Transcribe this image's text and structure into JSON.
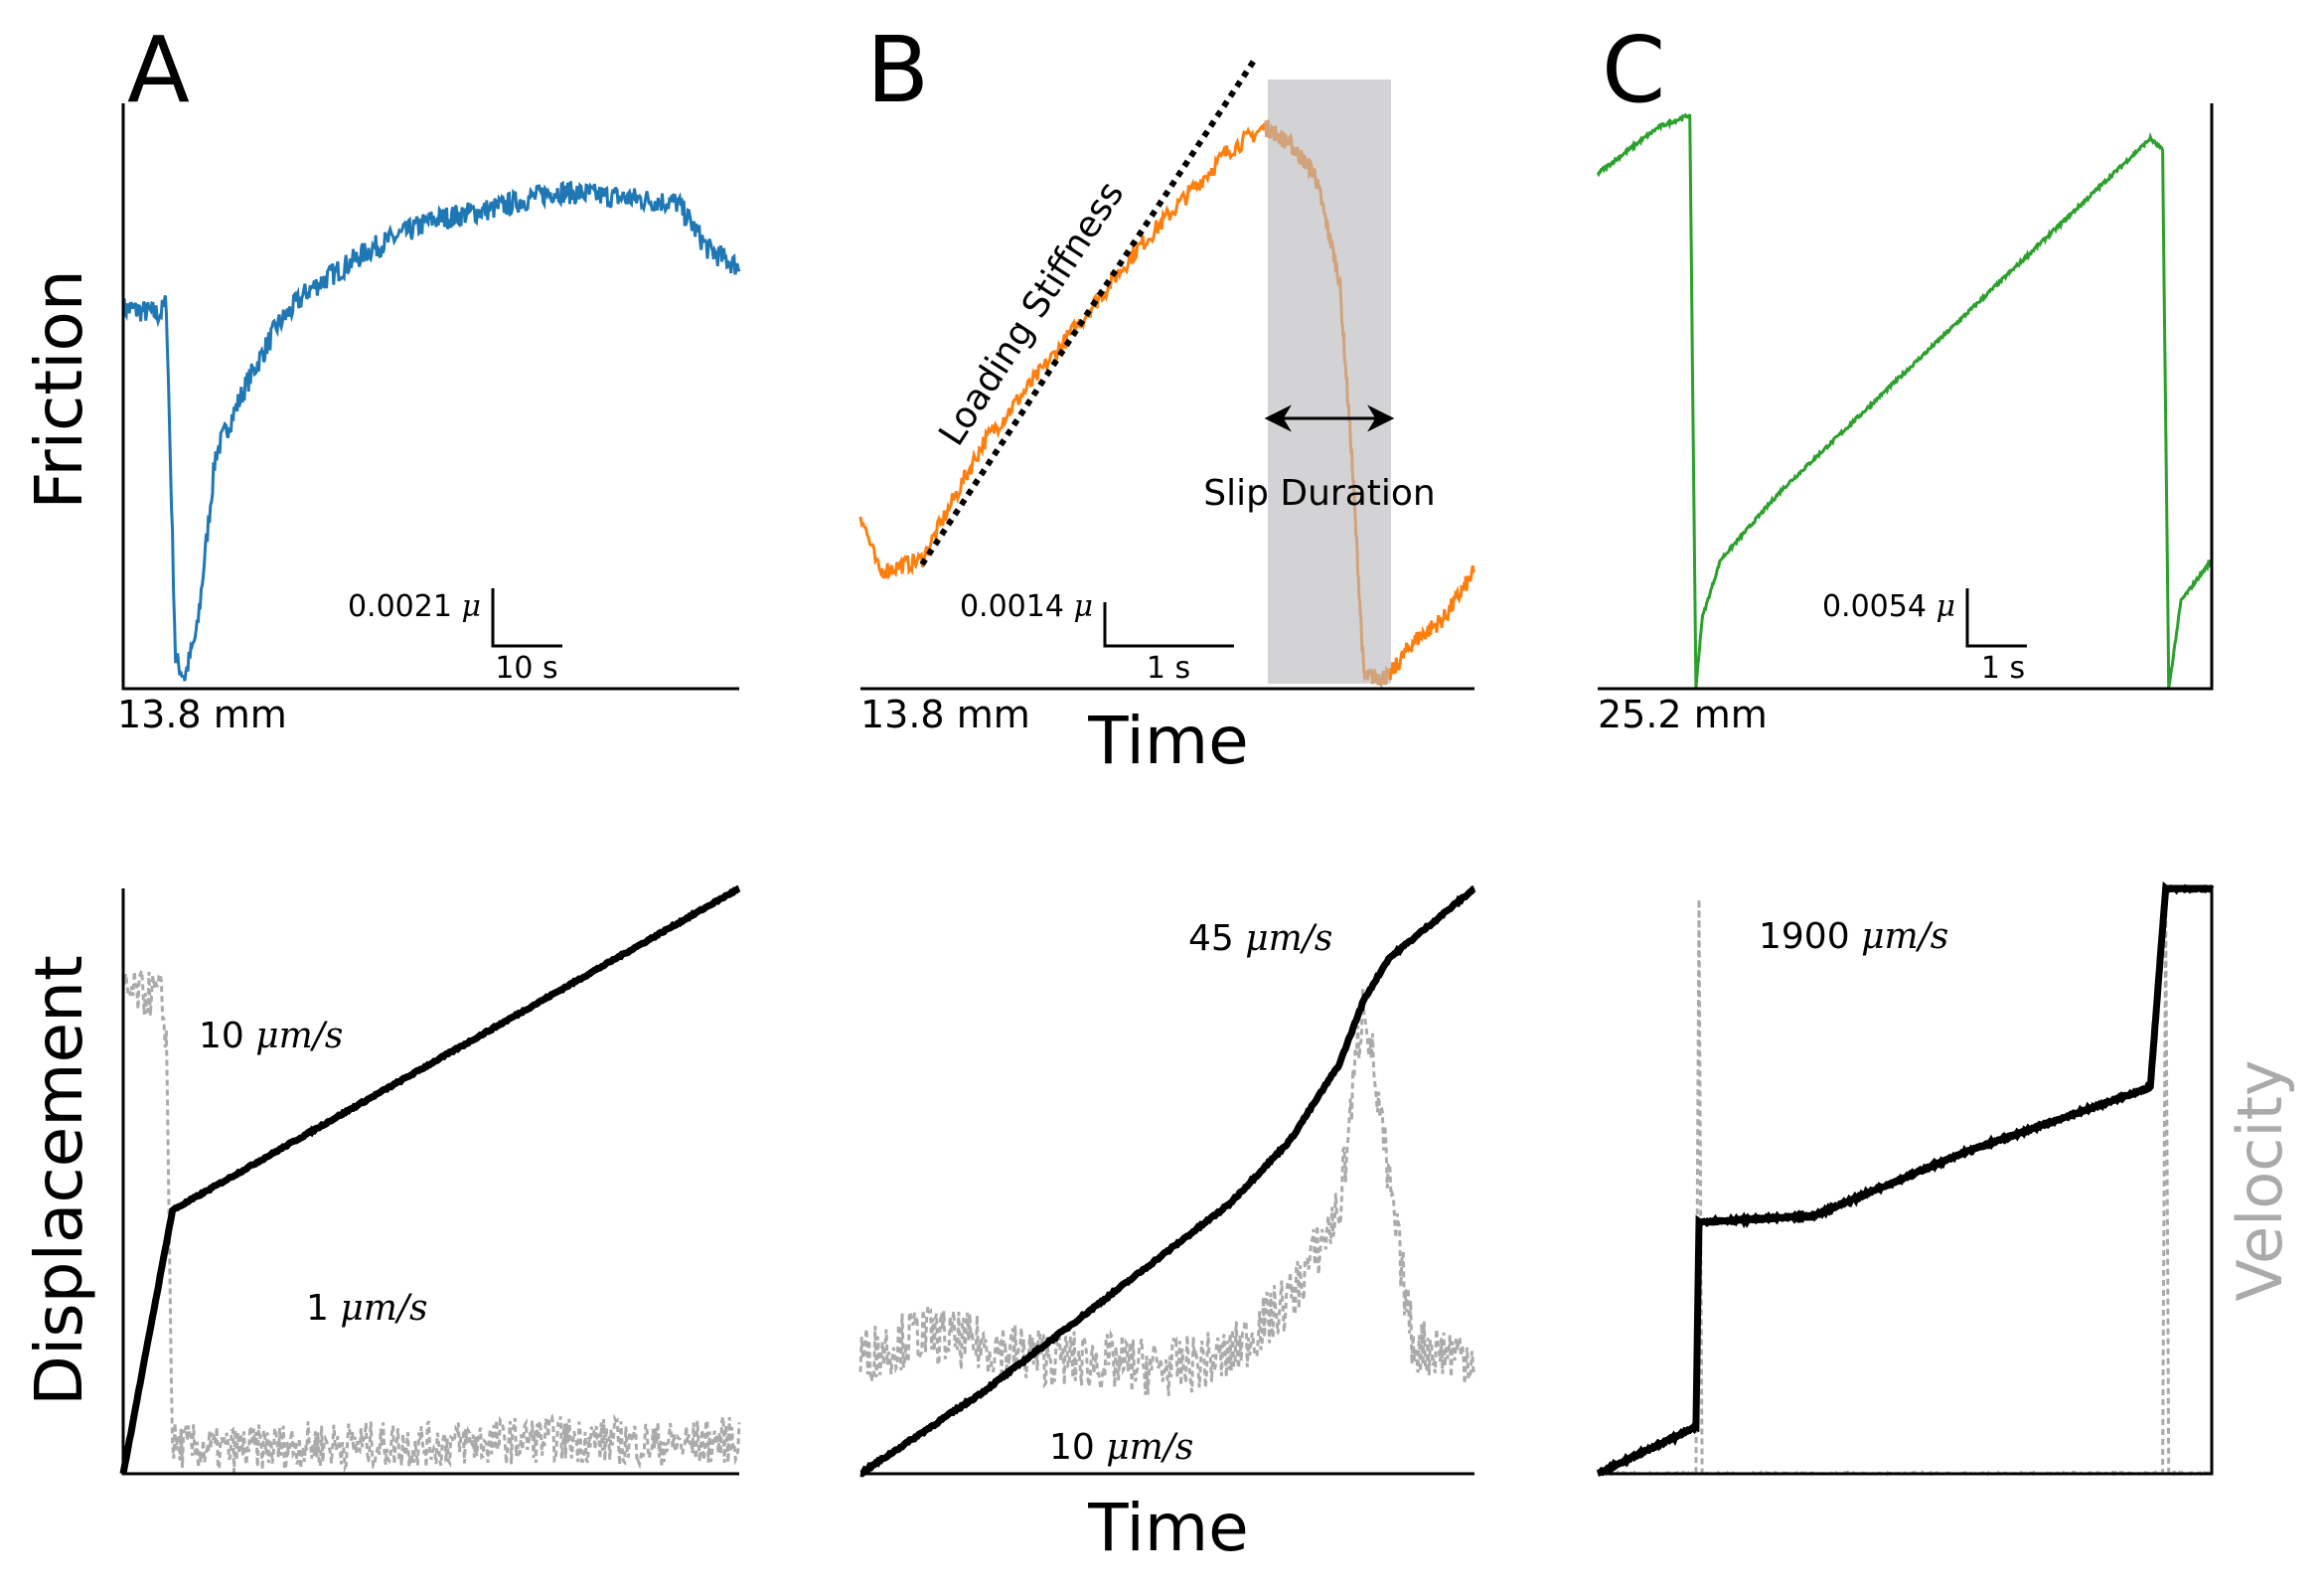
{
  "colors": {
    "friction_A": "#1f77b4",
    "friction_B": "#ff7f0e",
    "friction_B_slip": "#d2a27a",
    "friction_C": "#2ca02c",
    "displacement": "#000000",
    "velocity": "#aaaaaa",
    "slip_band": "#d3d3d5"
  },
  "labels": {
    "panel_A": "A",
    "panel_B": "B",
    "panel_C": "C",
    "friction_ylabel": "Friction",
    "displacement_ylabel": "Displacement",
    "velocity_ylabel": "Velocity",
    "time_xlabel_top": "Time",
    "time_xlabel_bottom": "Time",
    "loading_stiffness": "Loading Stiffness",
    "slip_duration": "Slip Duration",
    "mm_A": "13.8 mm",
    "mm_B": "13.8 mm",
    "mm_C": "25.2 mm",
    "scale_A_mu": "0.0021",
    "scale_A_t": "10 s",
    "scale_B_mu": "0.0014",
    "scale_B_t": "1 s",
    "scale_C_mu": "0.0054",
    "scale_C_t": "1 s",
    "mu_symbol": "μ",
    "vel_unit": "μm/s",
    "vel_A_high": "10",
    "vel_A_low": "1",
    "vel_B_high": "45",
    "vel_B_low": "10",
    "vel_C_high": "1900"
  },
  "chart_data": [
    {
      "panel": "A",
      "type": "line",
      "ylabel": "Friction",
      "scale_bar": {
        "mu": 0.0021,
        "time_s": 10
      },
      "displacement_mm": 13.8,
      "x": [
        0,
        0.06,
        0.07,
        0.085,
        0.1,
        0.12,
        0.15,
        0.2,
        0.25,
        0.3,
        0.4,
        0.5,
        0.6,
        0.7,
        0.8,
        0.9,
        0.95,
        1.0
      ],
      "y": [
        0.65,
        0.64,
        0.66,
        0.05,
        0.02,
        0.1,
        0.4,
        0.52,
        0.62,
        0.68,
        0.75,
        0.8,
        0.82,
        0.85,
        0.84,
        0.83,
        0.75,
        0.72
      ]
    },
    {
      "panel": "B",
      "type": "line",
      "ylabel": "Friction",
      "xlabel": "Time",
      "scale_bar": {
        "mu": 0.0014,
        "time_s": 1
      },
      "displacement_mm": 13.8,
      "x": [
        0,
        0.03,
        0.1,
        0.2,
        0.3,
        0.45,
        0.6,
        0.66,
        0.7,
        0.74,
        0.78,
        0.8,
        0.82,
        0.86,
        0.9,
        0.95,
        1.0
      ],
      "y": [
        0.3,
        0.2,
        0.22,
        0.42,
        0.55,
        0.75,
        0.92,
        0.96,
        0.93,
        0.88,
        0.7,
        0.4,
        0.02,
        0.02,
        0.08,
        0.12,
        0.2
      ],
      "slip_window": [
        0.66,
        0.86
      ]
    },
    {
      "panel": "C",
      "type": "line",
      "ylabel": "Friction",
      "scale_bar": {
        "mu": 0.0054,
        "time_s": 1
      },
      "displacement_mm": 25.2,
      "x": [
        0,
        0.1,
        0.15,
        0.16,
        0.17,
        0.2,
        0.3,
        0.5,
        0.7,
        0.9,
        0.92,
        0.93,
        0.95,
        1.0
      ],
      "y": [
        0.88,
        0.96,
        0.98,
        0.0,
        0.12,
        0.22,
        0.34,
        0.54,
        0.74,
        0.94,
        0.92,
        0.0,
        0.15,
        0.22
      ]
    },
    {
      "panel": "A",
      "type": "line",
      "ylabel": "Displacement",
      "velocities_um_s": [
        10,
        1
      ],
      "series": [
        {
          "x": [
            0,
            0.08,
            1.0
          ],
          "y": [
            0,
            0.45,
            1.0
          ]
        },
        {
          "x": [
            0,
            0.06,
            0.07,
            0.08,
            0.15,
            0.3,
            0.5,
            0.7,
            0.9,
            1.0
          ],
          "y": [
            0.82,
            0.82,
            0.75,
            0.05,
            0.04,
            0.05,
            0.05,
            0.06,
            0.05,
            0.06
          ]
        }
      ]
    },
    {
      "panel": "B",
      "type": "line",
      "ylabel": "Displacement",
      "xlabel": "Time",
      "velocities_um_s": [
        45,
        10
      ],
      "series": [
        {
          "x": [
            0,
            0.2,
            0.4,
            0.6,
            0.7,
            0.78,
            0.82,
            0.86,
            1.0
          ],
          "y": [
            0,
            0.14,
            0.3,
            0.46,
            0.57,
            0.7,
            0.81,
            0.88,
            1.0
          ]
        },
        {
          "x": [
            0,
            0.1,
            0.3,
            0.5,
            0.6,
            0.7,
            0.78,
            0.82,
            0.86,
            0.9,
            1.0
          ],
          "y": [
            0.2,
            0.24,
            0.2,
            0.18,
            0.2,
            0.3,
            0.45,
            0.82,
            0.5,
            0.22,
            0.2
          ]
        }
      ]
    },
    {
      "panel": "C",
      "type": "line",
      "ylabel": "Displacement",
      "velocities_um_s": [
        1900
      ],
      "series": [
        {
          "x": [
            0,
            0.16,
            0.165,
            0.35,
            0.6,
            0.9,
            0.925,
            1.0
          ],
          "y": [
            0,
            0.08,
            0.43,
            0.44,
            0.55,
            0.66,
            1.0,
            1.0
          ]
        },
        {
          "x": [
            0,
            0.16,
            0.165,
            0.17,
            0.9,
            0.92,
            0.925,
            0.93,
            1.0
          ],
          "y": [
            0,
            0,
            0.98,
            0,
            0,
            0,
            0.98,
            0,
            0
          ]
        }
      ]
    }
  ]
}
